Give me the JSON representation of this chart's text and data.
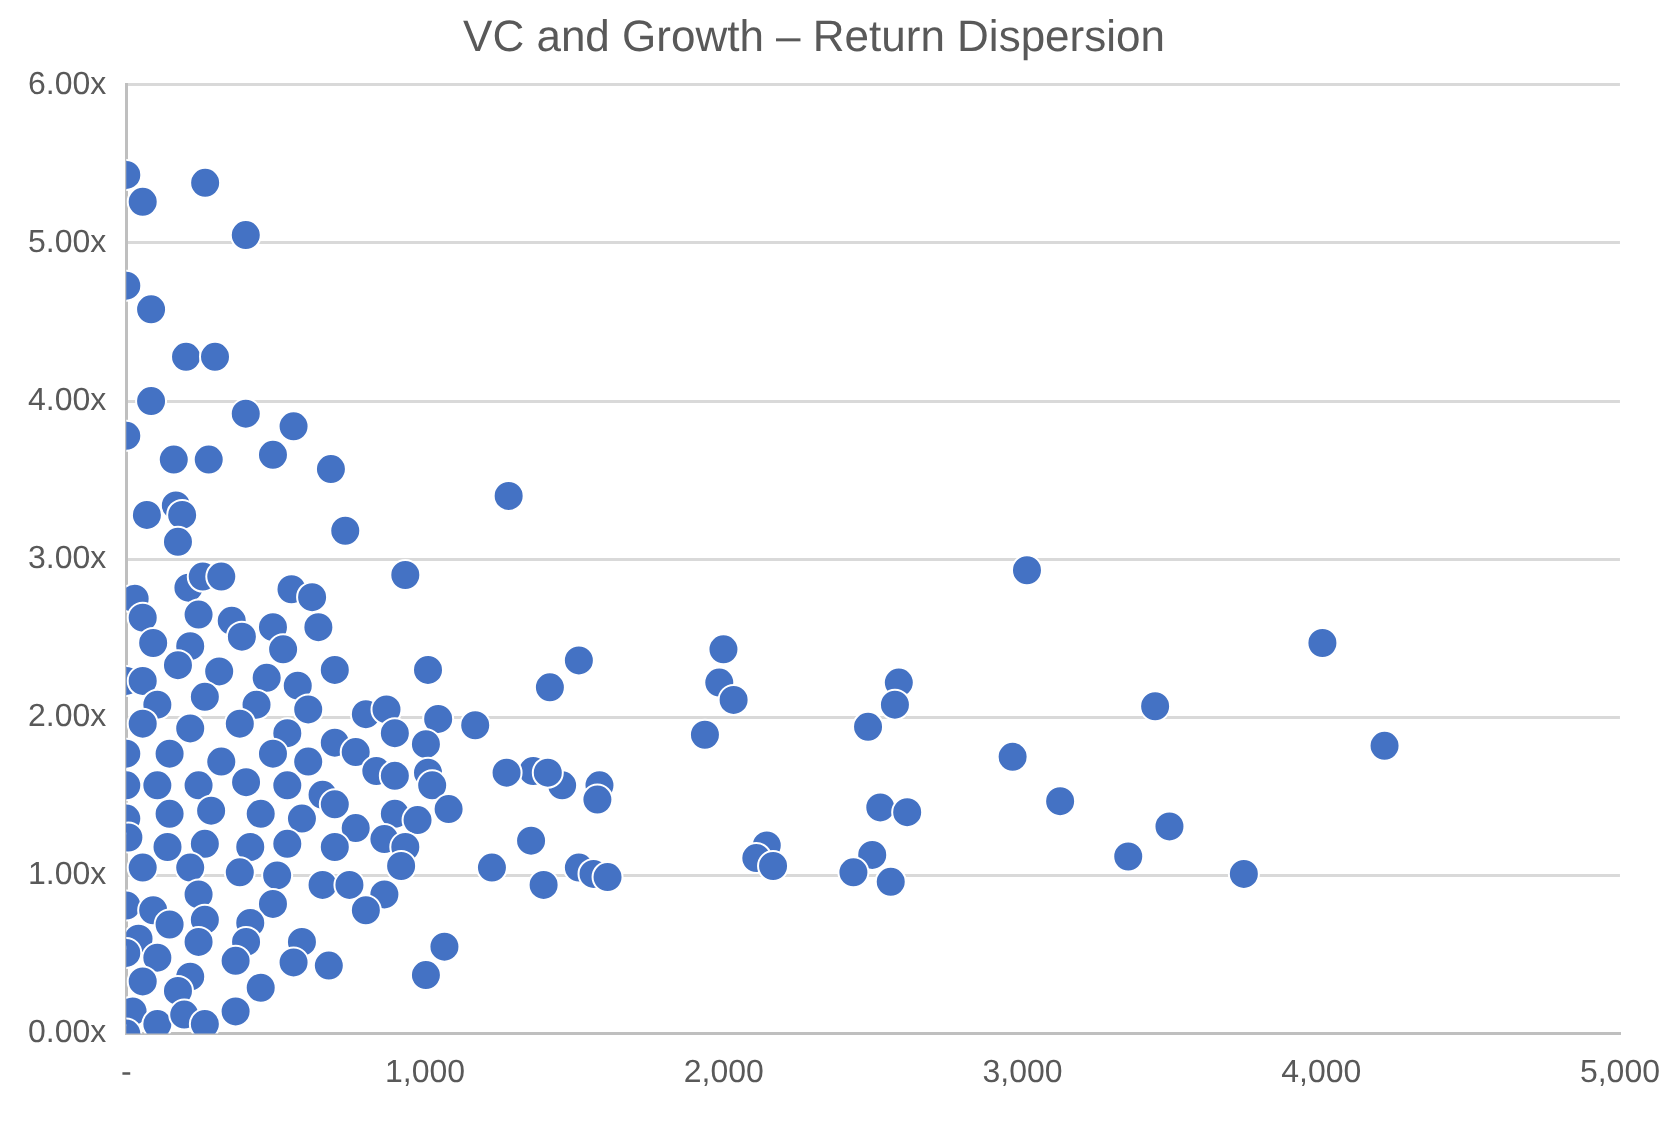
{
  "chart_data": {
    "type": "scatter",
    "title": "VC and Growth – Return Dispersion",
    "x": [
      0,
      55,
      264,
      400,
      0,
      83,
      200,
      297,
      83,
      0,
      400,
      491,
      560,
      685,
      159,
      276,
      166,
      187,
      69,
      173,
      733,
      1280,
      934,
      3015,
      4004,
      4212,
      3444,
      2967,
      3126,
      3492,
      3354,
      3741,
      1999,
      1985,
      2033,
      1937,
      2586,
      2573,
      2483,
      2524,
      2614,
      2497,
      2434,
      2559,
      2144,
      2109,
      2165,
      1515,
      1418,
      1362,
      1459,
      1411,
      1584,
      1577,
      1273,
      1168,
      1044,
      1355,
      1515,
      1564,
      1611,
      1397,
      1224,
      1065,
      1003,
      208,
      256,
      318,
      553,
      622,
      28,
      55,
      242,
      353,
      491,
      643,
      90,
      214,
      387,
      525,
      698,
      1010,
      0,
      55,
      173,
      311,
      470,
      574,
      104,
      263,
      436,
      609,
      802,
      871,
      899,
      1003,
      55,
      214,
      380,
      539,
      698,
      768,
      0,
      145,
      318,
      491,
      609,
      837,
      899,
      1010,
      1024,
      1079,
      0,
      104,
      242,
      401,
      539,
      657,
      698,
      0,
      145,
      284,
      450,
      588,
      768,
      899,
      975,
      7,
      138,
      263,
      415,
      539,
      698,
      864,
      934,
      55,
      214,
      380,
      505,
      657,
      747,
      920,
      242,
      864,
      802,
      491,
      0,
      90,
      145,
      263,
      415,
      41,
      242,
      401,
      588,
      0,
      104,
      366,
      560,
      678,
      214,
      55,
      450,
      173,
      21,
      104,
      194,
      263,
      366,
      0
    ],
    "values": [
      5.43,
      5.26,
      5.38,
      5.05,
      4.73,
      4.58,
      4.28,
      4.28,
      4.0,
      3.78,
      3.92,
      3.66,
      3.84,
      3.57,
      3.63,
      3.63,
      3.34,
      3.28,
      3.28,
      3.11,
      3.18,
      3.4,
      2.9,
      2.93,
      2.47,
      1.82,
      2.07,
      1.75,
      1.47,
      1.31,
      1.12,
      1.01,
      2.43,
      2.22,
      2.11,
      1.89,
      2.22,
      2.08,
      1.94,
      1.43,
      1.4,
      1.13,
      1.02,
      0.96,
      1.19,
      1.11,
      1.06,
      2.36,
      2.19,
      1.66,
      1.57,
      1.65,
      1.57,
      1.48,
      1.65,
      1.95,
      1.99,
      1.22,
      1.05,
      1.01,
      0.99,
      0.94,
      1.05,
      0.55,
      0.37,
      2.82,
      2.89,
      2.89,
      2.81,
      2.76,
      2.75,
      2.63,
      2.65,
      2.61,
      2.57,
      2.57,
      2.47,
      2.45,
      2.51,
      2.43,
      2.3,
      2.3,
      2.23,
      2.23,
      2.33,
      2.29,
      2.25,
      2.2,
      2.08,
      2.13,
      2.08,
      2.05,
      2.02,
      2.05,
      1.9,
      1.83,
      1.96,
      1.93,
      1.96,
      1.9,
      1.84,
      1.78,
      1.77,
      1.77,
      1.72,
      1.77,
      1.72,
      1.66,
      1.63,
      1.65,
      1.57,
      1.42,
      1.57,
      1.57,
      1.57,
      1.59,
      1.57,
      1.51,
      1.45,
      1.36,
      1.39,
      1.41,
      1.39,
      1.36,
      1.3,
      1.39,
      1.35,
      1.24,
      1.18,
      1.2,
      1.18,
      1.2,
      1.18,
      1.23,
      1.18,
      1.05,
      1.05,
      1.02,
      1.0,
      0.94,
      0.94,
      1.06,
      0.88,
      0.88,
      0.78,
      0.82,
      0.81,
      0.78,
      0.69,
      0.72,
      0.7,
      0.6,
      0.58,
      0.58,
      0.58,
      0.51,
      0.48,
      0.46,
      0.45,
      0.43,
      0.36,
      0.33,
      0.29,
      0.27,
      0.14,
      0.06,
      0.12,
      0.06,
      0.14,
      0.0
    ],
    "color": "#4472c4",
    "marker": "circle",
    "grid": "y",
    "xlim": [
      0,
      5000
    ],
    "xticks": [
      {
        "value": 0,
        "label": "-"
      },
      {
        "value": 1000,
        "label": "1,000"
      },
      {
        "value": 2000,
        "label": "2,000"
      },
      {
        "value": 3000,
        "label": "3,000"
      },
      {
        "value": 4000,
        "label": "4,000"
      },
      {
        "value": 5000,
        "label": "5,000"
      }
    ],
    "ylim": [
      0,
      6
    ],
    "yticks": [
      {
        "value": 0,
        "label": "0.00x"
      },
      {
        "value": 1,
        "label": "1.00x"
      },
      {
        "value": 2,
        "label": "2.00x"
      },
      {
        "value": 3,
        "label": "3.00x"
      },
      {
        "value": 4,
        "label": "4.00x"
      },
      {
        "value": 5,
        "label": "5.00x"
      },
      {
        "value": 6,
        "label": "6.00x"
      }
    ]
  }
}
